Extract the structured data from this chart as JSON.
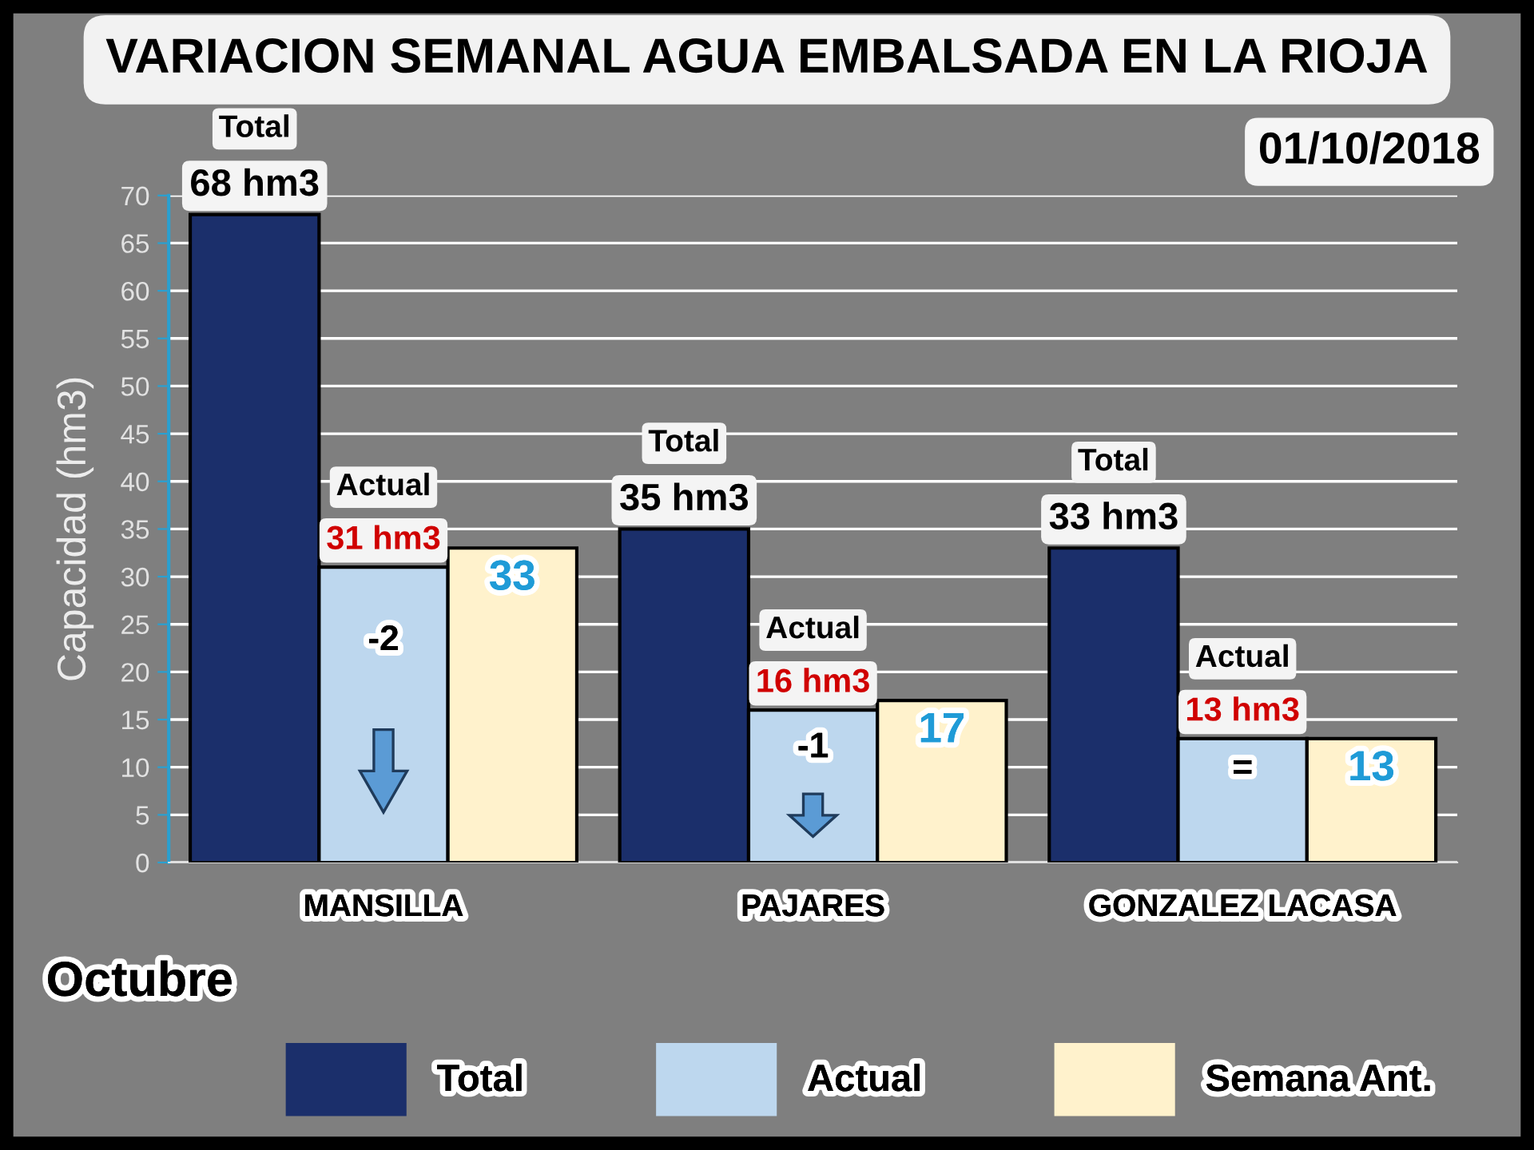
{
  "chart_data": {
    "type": "bar",
    "title": "VARIACION SEMANAL AGUA EMBALSADA EN LA RIOJA",
    "ylabel": "Capacidad (hm3)",
    "categories": [
      "MANSILLA",
      "PAJARES",
      "GONZALEZ LACASA"
    ],
    "series": [
      {
        "name": "Total",
        "color": "#1b2f6b",
        "values": [
          68,
          35,
          33
        ],
        "value_labels": [
          "68 hm3",
          "35 hm3",
          "33 hm3"
        ]
      },
      {
        "name": "Actual",
        "color": "#bdd7ee",
        "values": [
          31,
          16,
          13
        ],
        "value_labels": [
          "31 hm3",
          "16 hm3",
          "13 hm3"
        ]
      },
      {
        "name": "Semana Ant.",
        "color": "#fff2cc",
        "values": [
          33,
          17,
          13
        ],
        "value_labels": [
          "33",
          "17",
          "13"
        ]
      }
    ],
    "ylim": [
      0,
      70
    ],
    "yticks": [
      0,
      5,
      10,
      15,
      20,
      25,
      30,
      35,
      40,
      45,
      50,
      55,
      60,
      65,
      70
    ],
    "grid": "y",
    "legend": "bottom",
    "annotations": [
      "01/10/2018",
      "Octubre",
      "Total",
      "Actual",
      "-2",
      "Total",
      "Actual",
      "-1",
      "Total",
      "Actual",
      "="
    ]
  }
}
